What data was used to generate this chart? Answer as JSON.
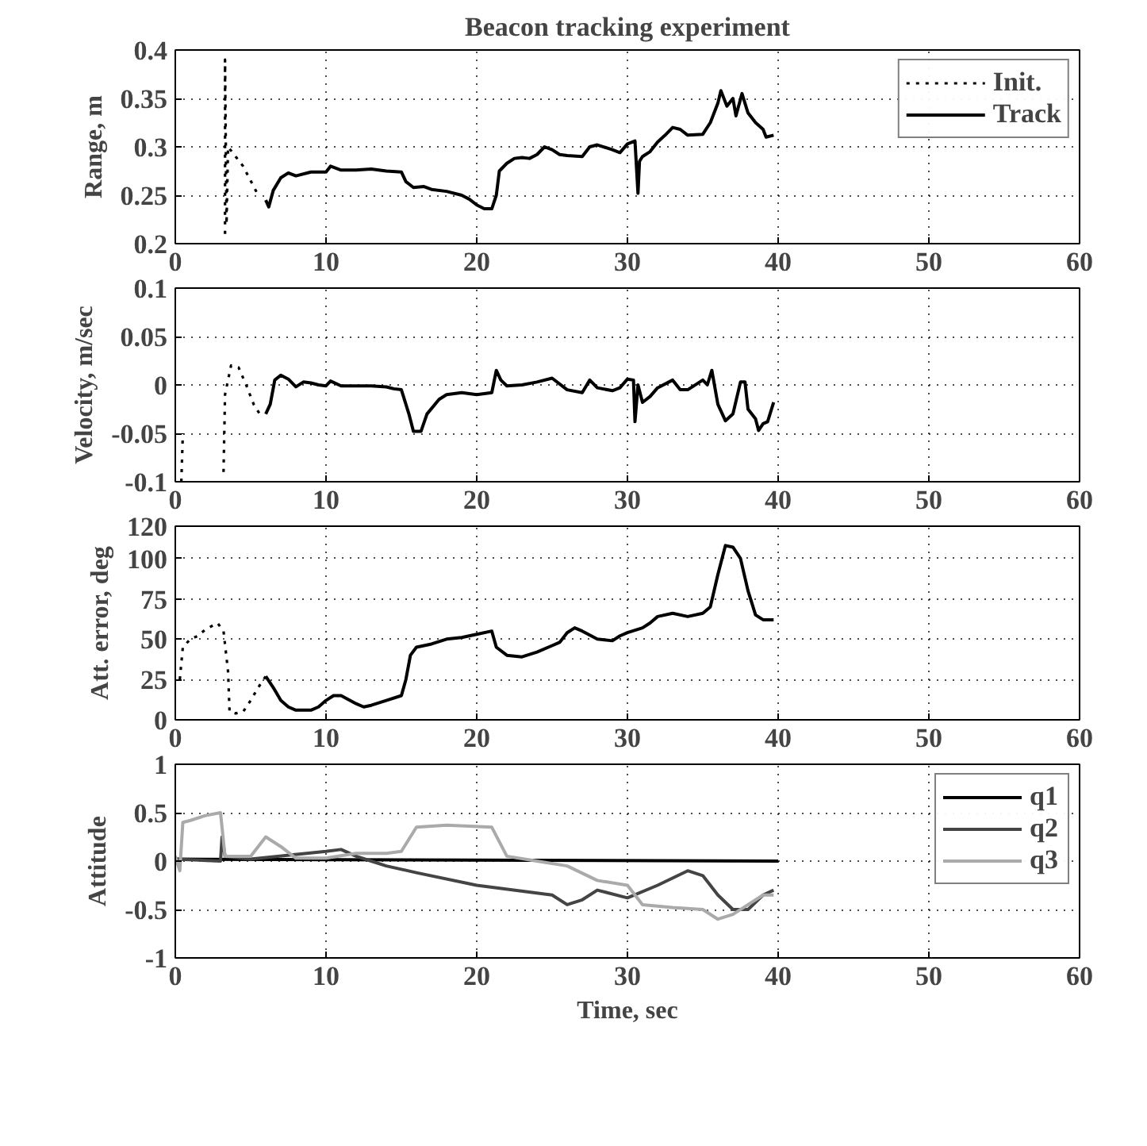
{
  "chart_data": [
    {
      "type": "line",
      "title": "Beacon tracking experiment",
      "ylabel": "Range, m",
      "xlim": [
        0,
        60
      ],
      "xticks": [
        0,
        10,
        20,
        30,
        40,
        50,
        60
      ],
      "ylim": [
        0.2,
        0.4
      ],
      "yticks": [
        0.2,
        0.25,
        0.3,
        0.35,
        0.4
      ],
      "grid": true,
      "legend": "top right",
      "series": [
        {
          "name": "Init.",
          "color": "#000000",
          "line_style": "dotted",
          "x": [
            3.3,
            3.3,
            3.4,
            3.5,
            4,
            4.5,
            5,
            5.5
          ],
          "values": [
            0.21,
            0.39,
            0.22,
            0.3,
            0.29,
            0.28,
            0.265,
            0.25
          ]
        },
        {
          "name": "Track",
          "color": "#000000",
          "line_style": "solid",
          "x": [
            6,
            6.2,
            6.5,
            7,
            7.5,
            8,
            9,
            10,
            10.3,
            11,
            12,
            13,
            14,
            15,
            15.3,
            15.8,
            16.5,
            17,
            18,
            19,
            19.5,
            20,
            20.5,
            21,
            21.3,
            21.5,
            22,
            22.5,
            23,
            23.5,
            24,
            24.5,
            25,
            25.5,
            26,
            27,
            27.5,
            28,
            29,
            29.5,
            30,
            30.5,
            30.7,
            30.8,
            31,
            31.5,
            32,
            32.5,
            33,
            33.5,
            34,
            35,
            35.5,
            36,
            36.2,
            36.6,
            37,
            37.2,
            37.6,
            38,
            38.5,
            39,
            39.2,
            39.7
          ],
          "values": [
            0.245,
            0.238,
            0.255,
            0.268,
            0.273,
            0.27,
            0.274,
            0.274,
            0.28,
            0.276,
            0.276,
            0.277,
            0.275,
            0.274,
            0.264,
            0.258,
            0.259,
            0.256,
            0.254,
            0.25,
            0.246,
            0.24,
            0.236,
            0.236,
            0.25,
            0.275,
            0.283,
            0.288,
            0.289,
            0.288,
            0.292,
            0.3,
            0.297,
            0.292,
            0.291,
            0.29,
            0.3,
            0.302,
            0.297,
            0.294,
            0.303,
            0.306,
            0.252,
            0.285,
            0.29,
            0.295,
            0.305,
            0.312,
            0.32,
            0.318,
            0.312,
            0.313,
            0.325,
            0.345,
            0.358,
            0.342,
            0.35,
            0.332,
            0.355,
            0.335,
            0.325,
            0.318,
            0.31,
            0.312
          ]
        }
      ]
    },
    {
      "type": "line",
      "ylabel": "Velocity, m/sec",
      "xlim": [
        0,
        60
      ],
      "xticks": [
        0,
        10,
        20,
        30,
        40,
        50,
        60
      ],
      "ylim": [
        -0.1,
        0.1
      ],
      "yticks": [
        -0.1,
        -0.05,
        0,
        0.05,
        0.1
      ],
      "grid": true,
      "series": [
        {
          "color": "#000000",
          "line_style": "dotted",
          "x": [
            0.4,
            0.5,
            2,
            3.2,
            3.3,
            3.7,
            4.2,
            4.7,
            5.2,
            5.6
          ],
          "values": [
            -0.1,
            -0.05,
            null,
            -0.09,
            -0.01,
            0.02,
            0.018,
            0,
            -0.02,
            -0.03
          ]
        },
        {
          "color": "#000000",
          "line_style": "solid",
          "x": [
            6,
            6.3,
            6.6,
            7,
            7.5,
            8,
            8.5,
            9,
            9.5,
            10,
            10.3,
            11,
            12,
            13,
            14,
            14.5,
            15,
            15.5,
            15.8,
            16.3,
            16.7,
            17.5,
            18,
            19,
            20,
            21,
            21.3,
            21.6,
            22,
            23,
            24,
            25,
            26,
            27,
            27.5,
            28,
            29,
            29.5,
            30,
            30.4,
            30.5,
            30.7,
            31,
            31.5,
            32,
            33,
            33.5,
            34,
            35,
            35.3,
            35.6,
            36,
            36.5,
            37,
            37.5,
            37.8,
            38,
            38.5,
            38.7,
            39,
            39.3,
            39.7
          ],
          "values": [
            -0.03,
            -0.02,
            0.005,
            0.01,
            0.006,
            -0.002,
            0.003,
            0.002,
            0,
            -0.001,
            0.004,
            -0.001,
            -0.001,
            -0.001,
            -0.002,
            -0.004,
            -0.005,
            -0.03,
            -0.048,
            -0.048,
            -0.03,
            -0.015,
            -0.01,
            -0.008,
            -0.01,
            -0.008,
            0.015,
            0.005,
            -0.001,
            0,
            0.003,
            0.007,
            -0.005,
            -0.008,
            0.005,
            -0.003,
            -0.006,
            -0.003,
            0.006,
            0.005,
            -0.038,
            0,
            -0.018,
            -0.012,
            -0.003,
            0.005,
            -0.005,
            -0.005,
            0.005,
            0,
            0.015,
            -0.02,
            -0.037,
            -0.03,
            0.003,
            0.003,
            -0.025,
            -0.035,
            -0.047,
            -0.04,
            -0.038,
            -0.018
          ]
        }
      ]
    },
    {
      "type": "line",
      "ylabel": "Att. error, deg",
      "xlim": [
        0,
        60
      ],
      "xticks": [
        0,
        10,
        20,
        30,
        40,
        50,
        60
      ],
      "ylim": [
        0,
        120
      ],
      "yticks": [
        0,
        25,
        50,
        75,
        100,
        120
      ],
      "grid": true,
      "series": [
        {
          "color": "#000000",
          "line_style": "dotted",
          "x": [
            0.3,
            0.5,
            1,
            1.5,
            2,
            2.8,
            3.2,
            3.5,
            3.6,
            4,
            4.5,
            5,
            5.5,
            6
          ],
          "values": [
            25,
            45,
            50,
            52,
            56,
            60,
            55,
            30,
            5,
            4,
            5,
            12,
            20,
            27
          ]
        },
        {
          "color": "#000000",
          "line_style": "solid",
          "x": [
            6,
            6.5,
            7,
            7.5,
            8,
            9,
            9.5,
            10,
            10.5,
            11,
            12,
            12.5,
            13,
            14,
            15,
            15.3,
            15.6,
            16,
            17,
            18,
            19,
            20,
            21,
            21.3,
            22,
            23,
            24,
            25,
            25.5,
            26,
            26.5,
            27,
            28,
            29,
            29.5,
            30,
            31,
            31.5,
            32,
            33,
            34,
            35,
            35.5,
            36,
            36.5,
            37,
            37.5,
            38,
            38.5,
            39,
            39.7
          ],
          "values": [
            27,
            20,
            12,
            8,
            6,
            6,
            8,
            12,
            15,
            15,
            10,
            8,
            9,
            12,
            15,
            25,
            40,
            45,
            47,
            50,
            51,
            53,
            55,
            45,
            40,
            39,
            42,
            46,
            48,
            54,
            57,
            55,
            50,
            49,
            52,
            54,
            57,
            60,
            64,
            66,
            64,
            66,
            70,
            90,
            108,
            107,
            100,
            80,
            65,
            62,
            62
          ]
        }
      ]
    },
    {
      "type": "line",
      "ylabel": "Attitude",
      "xlabel": "Time, sec",
      "xlim": [
        0,
        60
      ],
      "xticks": [
        0,
        10,
        20,
        30,
        40,
        50,
        60
      ],
      "ylim": [
        -1,
        1
      ],
      "yticks": [
        -1,
        -0.5,
        0,
        0.5,
        1
      ],
      "grid": true,
      "legend": "top right",
      "series": [
        {
          "name": "q1",
          "color": "#000000",
          "line_style": "solid",
          "x": [
            0,
            40
          ],
          "values": [
            0.02,
            0
          ]
        },
        {
          "name": "q2",
          "color": "#444444",
          "line_style": "solid",
          "x": [
            0,
            3,
            3.1,
            3.3,
            5,
            10,
            11,
            12,
            13,
            14,
            16,
            20,
            25,
            26,
            27,
            28,
            30,
            32,
            34,
            35,
            36,
            37,
            38,
            39,
            39.7
          ],
          "values": [
            0.02,
            0,
            0.25,
            0.05,
            0.02,
            0.1,
            0.12,
            0.05,
            0,
            -0.05,
            -0.12,
            -0.25,
            -0.35,
            -0.45,
            -0.4,
            -0.3,
            -0.38,
            -0.25,
            -0.1,
            -0.15,
            -0.35,
            -0.5,
            -0.5,
            -0.35,
            -0.3
          ]
        },
        {
          "name": "q3",
          "color": "#aaaaaa",
          "line_style": "solid",
          "x": [
            0,
            0.3,
            0.5,
            1,
            2,
            3,
            3.3,
            5,
            6,
            7,
            8,
            10,
            12,
            14,
            15,
            16,
            18,
            21,
            22,
            24,
            26,
            28,
            30,
            31,
            33,
            35,
            36,
            37,
            38,
            39,
            39.7
          ],
          "values": [
            0.05,
            -0.1,
            0.4,
            0.42,
            0.47,
            0.5,
            0.05,
            0.05,
            0.25,
            0.15,
            0.03,
            0.03,
            0.08,
            0.08,
            0.1,
            0.35,
            0.37,
            0.35,
            0.05,
            0,
            -0.05,
            -0.2,
            -0.25,
            -0.45,
            -0.48,
            -0.5,
            -0.6,
            -0.55,
            -0.45,
            -0.35,
            -0.35
          ]
        }
      ]
    }
  ]
}
